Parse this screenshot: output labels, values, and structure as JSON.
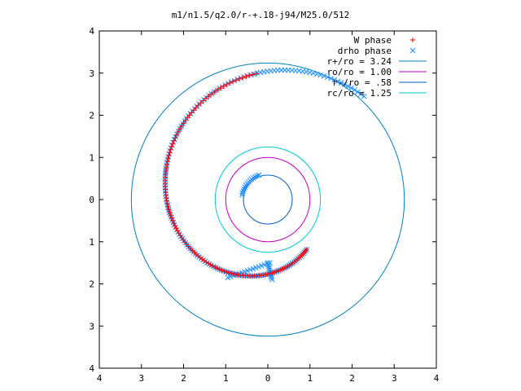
{
  "chart_data": {
    "type": "scatter",
    "title": "m1/n1.5/q2.0/r-+.18-j94/M25.0/512",
    "xlabel": "",
    "ylabel": "",
    "xlim": [
      -4,
      4
    ],
    "ylim": [
      -4,
      4
    ],
    "xtick_values": [
      -4,
      -3,
      -2,
      -1,
      0,
      1,
      2,
      3,
      4
    ],
    "xtick_labels": [
      "4",
      "3",
      "2",
      "1",
      "0",
      "1",
      "2",
      "3",
      "4"
    ],
    "ytick_values": [
      -4,
      -3,
      -2,
      -1,
      0,
      1,
      2,
      3,
      4
    ],
    "ytick_labels": [
      "4",
      "3",
      "2",
      "1",
      "0",
      "1",
      "2",
      "3",
      "4"
    ],
    "grid": false,
    "legend_position": "top-right",
    "colors": {
      "w_phase": "#ff0000",
      "drho_phase": "#1e90ff",
      "r_plus": "#0080c0",
      "ro": "#c000c0",
      "r_minus": "#0060c0",
      "rc": "#00c8d8"
    },
    "series": [
      {
        "name": "W phase",
        "kind": "points",
        "marker": "+",
        "spiral": {
          "r_start": 3.0,
          "r_end": 1.5,
          "theta_start_deg": 95,
          "theta_end_deg": 308,
          "count": 130
        }
      },
      {
        "name": "drho phase",
        "kind": "points",
        "marker": "x",
        "spiral": {
          "r_start": 3.35,
          "r_end": 1.5,
          "theta_start_deg": 47,
          "theta_end_deg": 308,
          "count": 170
        },
        "inner_arc": {
          "r": 0.62,
          "theta_start_deg": 110,
          "theta_end_deg": 170,
          "count": 14
        },
        "joins": [
          {
            "x1": 0.0,
            "y1": -1.5,
            "x2": 0.1,
            "y2": -1.9,
            "count": 10
          },
          {
            "x1": -0.95,
            "y1": -1.85,
            "x2": 0.05,
            "y2": -1.5,
            "count": 16
          }
        ]
      },
      {
        "name": "r+/ro = 3.24",
        "kind": "circle",
        "r": 3.24
      },
      {
        "name": "ro/ro = 1.00",
        "kind": "circle",
        "r": 1.0
      },
      {
        "name": "r-/ro = .58",
        "kind": "circle",
        "r": 0.58
      },
      {
        "name": "rc/ro = 1.25",
        "kind": "circle",
        "r": 1.25
      }
    ]
  }
}
